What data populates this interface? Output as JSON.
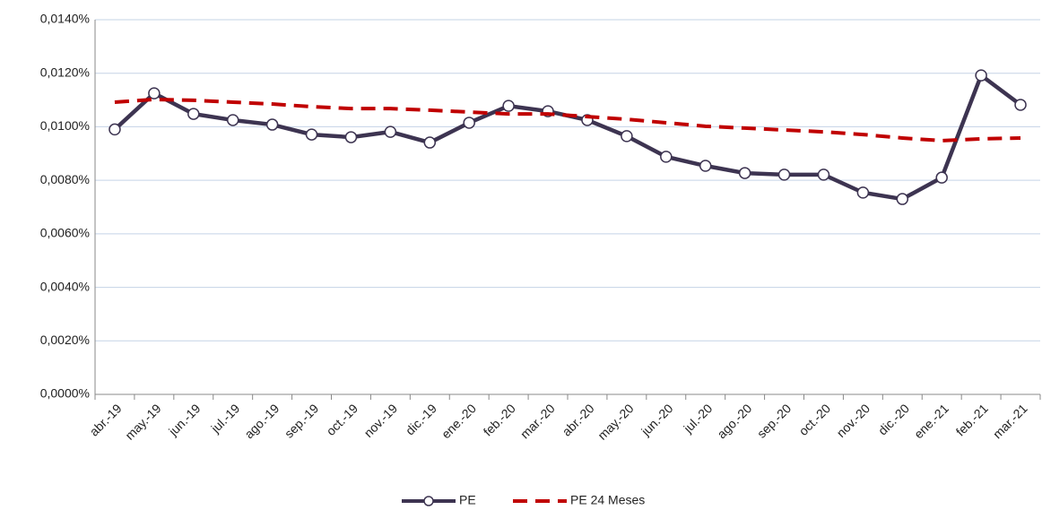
{
  "chart_data": {
    "type": "line",
    "categories": [
      "abr.-19",
      "may.-19",
      "jun.-19",
      "jul.-19",
      "ago.-19",
      "sep.-19",
      "oct.-19",
      "nov.-19",
      "dic.-19",
      "ene.-20",
      "feb.-20",
      "mar.-20",
      "abr.-20",
      "may.-20",
      "jun.-20",
      "jul.-20",
      "ago.-20",
      "sep.-20",
      "oct.-20",
      "nov.-20",
      "dic.-20",
      "ene.-21",
      "feb.-21",
      "mar.-21"
    ],
    "series": [
      {
        "name": "PE",
        "color": "#3d3451",
        "marker": true,
        "dashed": false,
        "values": [
          0.0099,
          0.01125,
          0.01048,
          0.01025,
          0.01008,
          0.00971,
          0.00961,
          0.00981,
          0.00941,
          0.01015,
          0.01078,
          0.01058,
          0.01025,
          0.00965,
          0.00888,
          0.00854,
          0.00827,
          0.00821,
          0.00821,
          0.00754,
          0.0073,
          0.0081,
          0.01192,
          0.01082
        ]
      },
      {
        "name": "PE 24 Meses",
        "color": "#c00000",
        "marker": false,
        "dashed": true,
        "values": [
          0.01092,
          0.01102,
          0.01099,
          0.01092,
          0.01085,
          0.01075,
          0.01068,
          0.01068,
          0.01062,
          0.01055,
          0.01048,
          0.01048,
          0.01038,
          0.01028,
          0.01015,
          0.01002,
          0.00995,
          0.00988,
          0.00981,
          0.00971,
          0.00958,
          0.00948,
          0.00955,
          0.00958
        ]
      }
    ],
    "ylim": [
      0,
      0.014
    ],
    "yticks": [
      {
        "value": 0,
        "label": "0,0000%"
      },
      {
        "value": 0.002,
        "label": "0,0020%"
      },
      {
        "value": 0.004,
        "label": "0,0040%"
      },
      {
        "value": 0.006,
        "label": "0,0060%"
      },
      {
        "value": 0.008,
        "label": "0,0080%"
      },
      {
        "value": 0.01,
        "label": "0,0100%"
      },
      {
        "value": 0.012,
        "label": "0,0120%"
      },
      {
        "value": 0.014,
        "label": "0,0140%"
      }
    ],
    "grid": true,
    "legend": "bottom"
  }
}
